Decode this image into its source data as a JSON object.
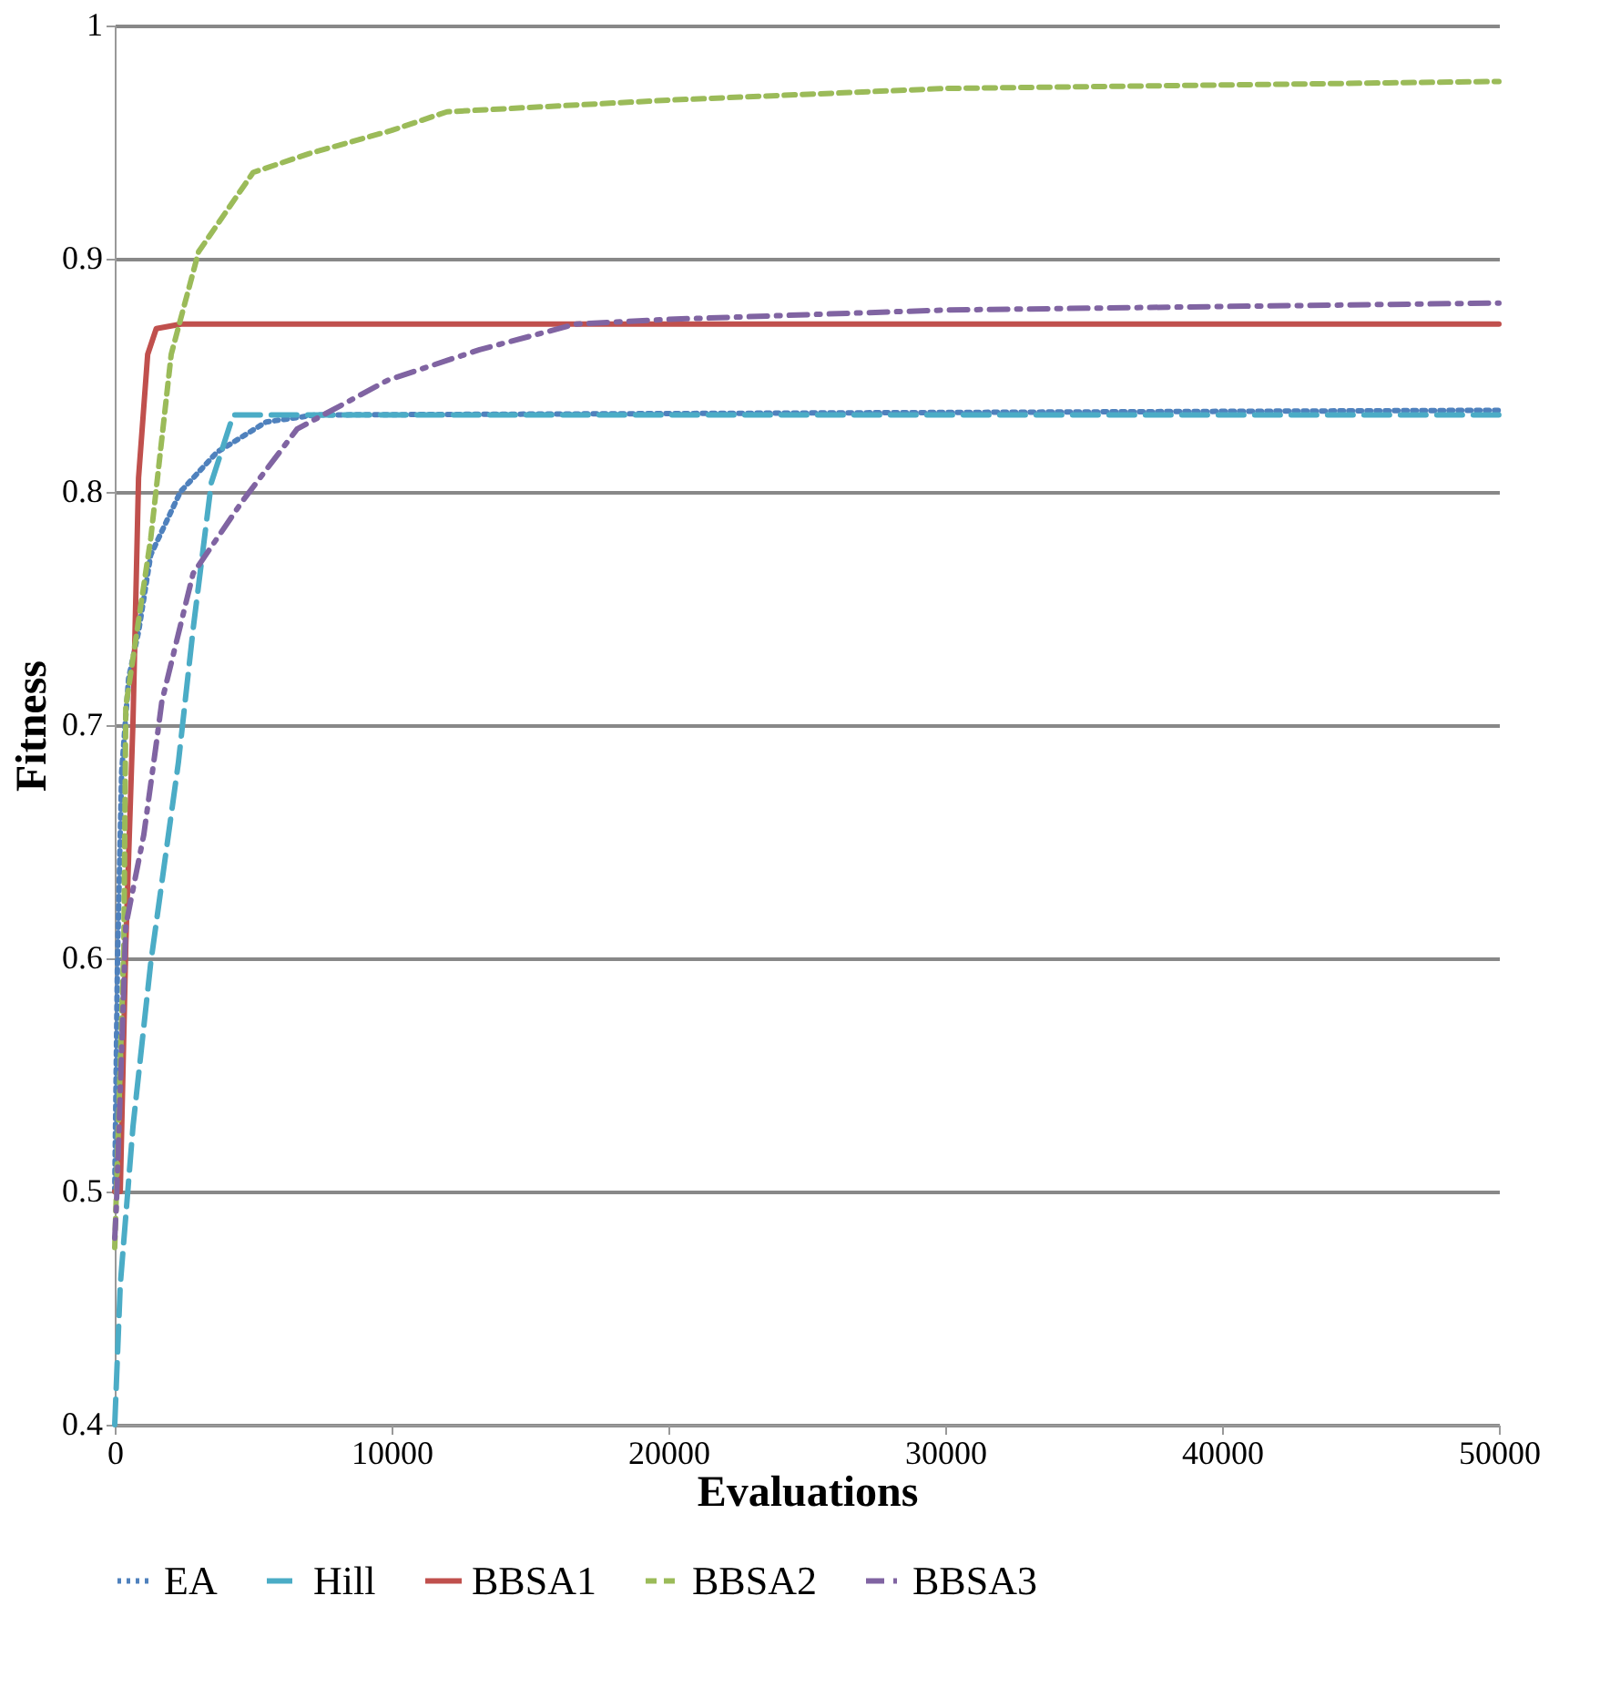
{
  "chart_data": {
    "type": "line",
    "xlabel": "Evaluations",
    "ylabel": "Fitness",
    "xlim": [
      0,
      50000
    ],
    "xticks": [
      0,
      10000,
      20000,
      30000,
      40000,
      50000
    ],
    "ylim": [
      0.4,
      1
    ],
    "yticks": [
      0.4,
      0.5,
      0.6,
      0.7,
      0.8,
      0.9,
      1
    ],
    "grid": "y",
    "legend": "bottom",
    "series": [
      {
        "name": "EA",
        "color": "#4f81bd",
        "line_style": "dotted",
        "x": [
          0,
          100,
          250,
          500,
          860,
          1300,
          2370,
          3690,
          5470,
          7250,
          50000
        ],
        "values": [
          0.5,
          0.6,
          0.68,
          0.72,
          0.74,
          0.773,
          0.8,
          0.817,
          0.83,
          0.833,
          0.835
        ]
      },
      {
        "name": "Hill",
        "color": "#4bacc6",
        "line_style": "longdash",
        "x": [
          0,
          200,
          660,
          1300,
          2300,
          2830,
          3490,
          4280,
          50000
        ],
        "values": [
          0.4,
          0.46,
          0.528,
          0.598,
          0.684,
          0.741,
          0.804,
          0.833,
          0.833
        ]
      },
      {
        "name": "BBSA1",
        "color": "#c0504d",
        "line_style": "solid",
        "x": [
          0,
          200,
          400,
          660,
          860,
          1190,
          1500,
          2400,
          50000
        ],
        "values": [
          0.5,
          0.5,
          0.606,
          0.702,
          0.806,
          0.859,
          0.87,
          0.872,
          0.872
        ]
      },
      {
        "name": "BBSA2",
        "color": "#9bbb59",
        "line_style": "dashed",
        "x": [
          0,
          330,
          400,
          1300,
          2040,
          3030,
          5000,
          7000,
          10000,
          12000,
          20000,
          30000,
          50000
        ],
        "values": [
          0.476,
          0.606,
          0.708,
          0.78,
          0.859,
          0.903,
          0.937,
          0.945,
          0.955,
          0.963,
          0.968,
          0.973,
          0.976
        ]
      },
      {
        "name": "BBSA3",
        "color": "#8064a2",
        "line_style": "dashdot",
        "x": [
          0,
          60,
          400,
          1050,
          1500,
          1700,
          2830,
          4610,
          6590,
          9880,
          13180,
          16670,
          20000,
          30000,
          50000
        ],
        "values": [
          0.48,
          0.494,
          0.614,
          0.653,
          0.692,
          0.71,
          0.765,
          0.796,
          0.827,
          0.848,
          0.861,
          0.872,
          0.874,
          0.878,
          0.881
        ]
      }
    ]
  }
}
